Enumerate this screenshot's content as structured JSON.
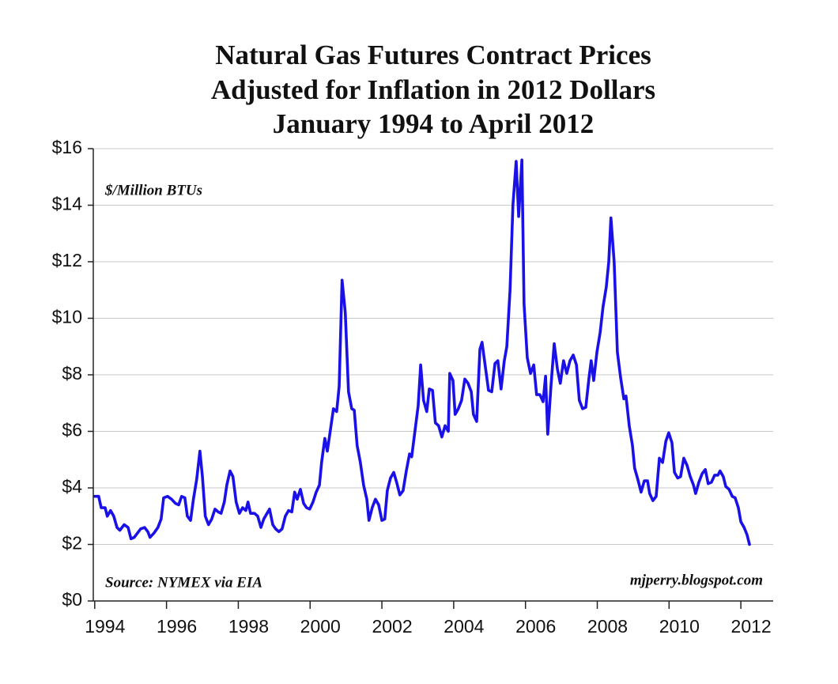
{
  "chart_data": {
    "type": "line",
    "title": [
      "Natural Gas Futures Contract Prices",
      "Adjusted for Inflation in 2012 Dollars",
      "January 1994 to April 2012"
    ],
    "annotations": [
      "$/Million BTUs",
      "Source: NYMEX via EIA",
      "mjperry.blogspot.com"
    ],
    "xlim": [
      1993.96,
      2012.9
    ],
    "xticks": [
      1994,
      1996,
      1998,
      2000,
      2002,
      2004,
      2006,
      2008,
      2010,
      2012
    ],
    "ylim": [
      0,
      16
    ],
    "yticks": [
      {
        "value": 0,
        "label": "$0"
      },
      {
        "value": 2,
        "label": "$2"
      },
      {
        "value": 4,
        "label": "$4"
      },
      {
        "value": 6,
        "label": "$6"
      },
      {
        "value": 8,
        "label": "$8"
      },
      {
        "value": 10,
        "label": "$10"
      },
      {
        "value": 12,
        "label": "$12"
      },
      {
        "value": 14,
        "label": "$14"
      },
      {
        "value": 16,
        "label": "$16"
      }
    ],
    "grid": true,
    "color": "#1a10e8",
    "x": [
      1994.0,
      1994.11,
      1994.18,
      1994.29,
      1994.35,
      1994.44,
      1994.53,
      1994.62,
      1994.7,
      1994.82,
      1994.93,
      1995.01,
      1995.1,
      1995.19,
      1995.28,
      1995.39,
      1995.48,
      1995.54,
      1995.65,
      1995.76,
      1995.85,
      1995.92,
      1996.03,
      1996.14,
      1996.25,
      1996.34,
      1996.42,
      1996.51,
      1996.58,
      1996.67,
      1996.75,
      1996.84,
      1996.93,
      1997.0,
      1997.08,
      1997.17,
      1997.26,
      1997.35,
      1997.44,
      1997.52,
      1997.61,
      1997.68,
      1997.77,
      1997.85,
      1997.94,
      1998.03,
      1998.12,
      1998.21,
      1998.27,
      1998.34,
      1998.45,
      1998.54,
      1998.63,
      1998.71,
      1998.8,
      1998.87,
      1998.96,
      1999.04,
      1999.13,
      1999.22,
      1999.31,
      1999.4,
      1999.49,
      1999.57,
      1999.64,
      1999.73,
      1999.82,
      1999.9,
      1999.99,
      2000.08,
      2000.17,
      2000.26,
      2000.32,
      2000.41,
      2000.48,
      2000.56,
      2000.65,
      2000.74,
      2000.81,
      2000.89,
      2000.98,
      2001.07,
      2001.16,
      2001.23,
      2001.31,
      2001.4,
      2001.49,
      2001.58,
      2001.64,
      2001.73,
      2001.82,
      2001.91,
      2002.0,
      2002.08,
      2002.15,
      2002.24,
      2002.33,
      2002.41,
      2002.5,
      2002.59,
      2002.68,
      2002.77,
      2002.83,
      2002.92,
      2003.01,
      2003.08,
      2003.16,
      2003.25,
      2003.32,
      2003.41,
      2003.49,
      2003.58,
      2003.67,
      2003.76,
      2003.85,
      2003.89,
      2003.98,
      2004.04,
      2004.13,
      2004.22,
      2004.31,
      2004.4,
      2004.49,
      2004.55,
      2004.64,
      2004.73,
      2004.79,
      2004.88,
      2004.97,
      2005.06,
      2005.15,
      2005.23,
      2005.32,
      2005.41,
      2005.48,
      2005.57,
      2005.65,
      2005.74,
      2005.81,
      2005.9,
      2005.96,
      2006.05,
      2006.14,
      2006.23,
      2006.31,
      2006.4,
      2006.49,
      2006.56,
      2006.62,
      2006.71,
      2006.8,
      2006.89,
      2006.97,
      2007.06,
      2007.15,
      2007.24,
      2007.33,
      2007.42,
      2007.5,
      2007.59,
      2007.68,
      2007.77,
      2007.83,
      2007.9,
      2007.99,
      2008.08,
      2008.16,
      2008.25,
      2008.32,
      2008.38,
      2008.47,
      2008.56,
      2008.65,
      2008.74,
      2008.8,
      2008.89,
      2008.98,
      2009.04,
      2009.13,
      2009.22,
      2009.31,
      2009.4,
      2009.46,
      2009.55,
      2009.64,
      2009.73,
      2009.82,
      2009.91,
      2009.99,
      2010.08,
      2010.15,
      2010.24,
      2010.32,
      2010.41,
      2010.5,
      2010.59,
      2010.68,
      2010.74,
      2010.83,
      2010.92,
      2011.01,
      2011.09,
      2011.18,
      2011.27,
      2011.36,
      2011.42,
      2011.51,
      2011.58,
      2011.67,
      2011.76,
      2011.84,
      2011.93,
      2012.0,
      2012.09,
      2012.17,
      2012.24
    ],
    "values": [
      3.7,
      3.7,
      3.3,
      3.3,
      3.0,
      3.2,
      3.0,
      2.6,
      2.5,
      2.7,
      2.6,
      2.2,
      2.25,
      2.4,
      2.55,
      2.6,
      2.45,
      2.25,
      2.4,
      2.6,
      2.9,
      3.65,
      3.7,
      3.6,
      3.45,
      3.4,
      3.7,
      3.65,
      3.0,
      2.85,
      3.6,
      4.3,
      5.3,
      4.4,
      3.0,
      2.7,
      2.9,
      3.25,
      3.15,
      3.1,
      3.5,
      4.1,
      4.6,
      4.4,
      3.5,
      3.1,
      3.3,
      3.2,
      3.5,
      3.1,
      3.1,
      3.0,
      2.6,
      2.9,
      3.1,
      3.25,
      2.7,
      2.55,
      2.45,
      2.55,
      3.0,
      3.2,
      3.15,
      3.85,
      3.6,
      3.95,
      3.45,
      3.3,
      3.25,
      3.5,
      3.85,
      4.1,
      4.9,
      5.75,
      5.3,
      6.0,
      6.8,
      6.7,
      7.6,
      11.35,
      10.2,
      7.4,
      6.8,
      6.75,
      5.5,
      4.9,
      4.1,
      3.6,
      2.85,
      3.3,
      3.6,
      3.4,
      2.85,
      2.9,
      3.9,
      4.35,
      4.55,
      4.2,
      3.75,
      3.9,
      4.6,
      5.2,
      5.1,
      6.0,
      6.9,
      8.35,
      7.1,
      6.7,
      7.5,
      7.45,
      6.3,
      6.2,
      5.8,
      6.2,
      6.0,
      8.05,
      7.8,
      6.6,
      6.8,
      7.1,
      7.85,
      7.7,
      7.4,
      6.6,
      6.35,
      8.9,
      9.15,
      8.3,
      7.45,
      7.4,
      8.4,
      8.5,
      7.5,
      8.5,
      9.0,
      11.0,
      14.0,
      15.55,
      13.6,
      15.6,
      10.5,
      8.6,
      8.05,
      8.35,
      7.3,
      7.3,
      7.05,
      7.95,
      5.9,
      7.6,
      9.1,
      8.2,
      7.7,
      8.5,
      8.05,
      8.5,
      8.7,
      8.35,
      7.1,
      6.8,
      6.85,
      7.9,
      8.5,
      7.8,
      8.8,
      9.5,
      10.4,
      11.1,
      12.0,
      13.55,
      12.0,
      8.8,
      7.9,
      7.15,
      7.25,
      6.2,
      5.5,
      4.7,
      4.3,
      3.85,
      4.25,
      4.25,
      3.8,
      3.55,
      3.7,
      5.05,
      4.9,
      5.65,
      5.95,
      5.6,
      4.55,
      4.35,
      4.4,
      5.05,
      4.8,
      4.4,
      4.1,
      3.8,
      4.2,
      4.5,
      4.65,
      4.15,
      4.2,
      4.45,
      4.45,
      4.6,
      4.4,
      4.05,
      3.95,
      3.7,
      3.65,
      3.3,
      2.8,
      2.6,
      2.35,
      2.0
    ]
  }
}
